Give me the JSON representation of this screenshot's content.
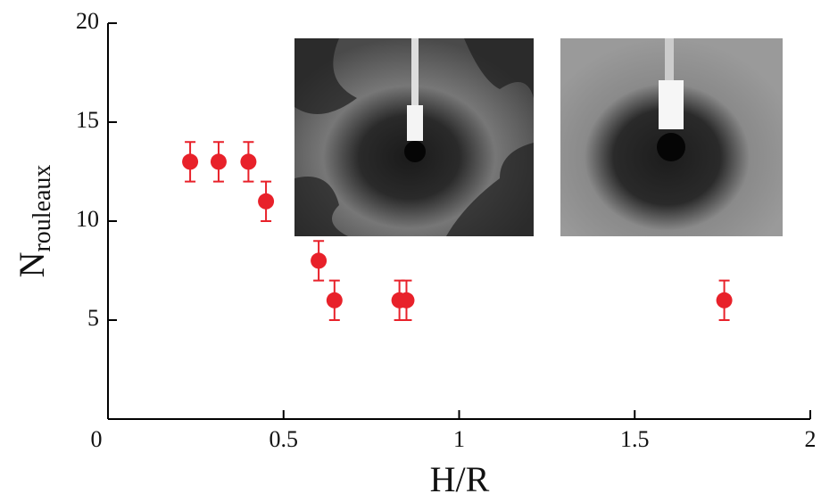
{
  "chart_data": {
    "type": "scatter",
    "x_label": "H/R",
    "y_label": {
      "text": "N",
      "subscript": "rouleaux"
    },
    "x": [
      0.234,
      0.315,
      0.4,
      0.45,
      0.6,
      0.645,
      0.83,
      0.85,
      1.755
    ],
    "values": [
      13,
      13,
      13,
      11,
      8,
      6,
      6,
      6,
      6
    ],
    "errors": [
      1,
      1,
      1,
      1,
      1,
      1,
      1,
      1,
      1
    ],
    "color": "#e8212a",
    "xlim": [
      0,
      2
    ],
    "xticks": [
      0,
      0.5,
      1,
      1.5,
      2
    ],
    "ylim": [
      0,
      20
    ],
    "yticks": [
      5,
      10,
      15,
      20
    ]
  }
}
